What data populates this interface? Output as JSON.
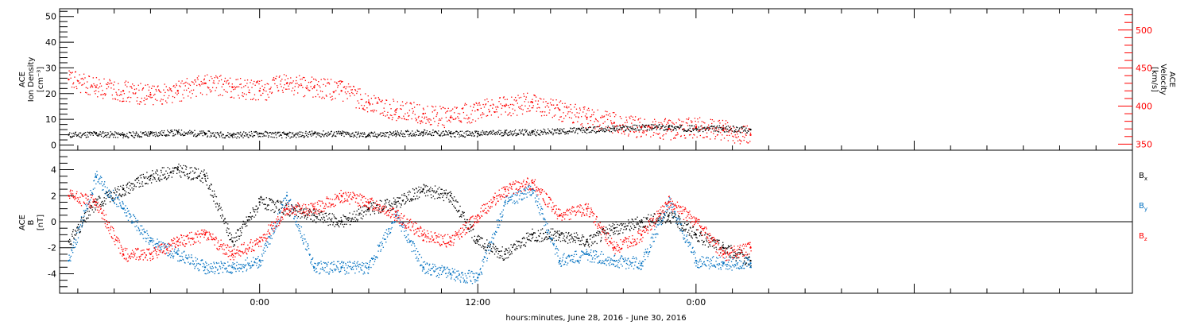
{
  "chart_data": [
    {
      "type": "scatter",
      "title": "",
      "ylabel_left": [
        "ACE",
        "Ion Density",
        "[cm⁻³]"
      ],
      "ylabel_right": [
        "ACE",
        "Velocity",
        "[km/s]"
      ],
      "yticks_left": [
        0,
        10,
        20,
        30,
        40,
        50
      ],
      "ylim_left": [
        -2,
        53
      ],
      "yticks_right": [
        350,
        400,
        450,
        500
      ],
      "ylim_right": [
        342,
        528
      ],
      "grid": false,
      "series": [
        {
          "axis": "left",
          "color": "#000000",
          "x": [
            -10.5,
            -9.0,
            -7.5,
            -6.0,
            -4.5,
            -3.0,
            -1.5,
            0.0,
            1.5,
            3.0,
            4.5,
            6.0,
            7.5,
            9.0,
            10.5,
            12.0,
            13.5,
            15.0,
            16.5,
            18.0,
            19.5,
            21.0,
            22.5,
            24.0,
            25.5,
            27.0
          ],
          "y": [
            4,
            4.5,
            4,
            4.5,
            5,
            4.5,
            4,
            4.5,
            4,
            4.5,
            4.5,
            4,
            4.5,
            5,
            4.5,
            4.5,
            5,
            5,
            5.5,
            6,
            6.5,
            7,
            7,
            6.5,
            6.5,
            6
          ]
        },
        {
          "axis": "right",
          "color": "#ff0000",
          "x": [
            -10.5,
            -9.0,
            -7.5,
            -6.0,
            -4.5,
            -3.0,
            -1.5,
            0.0,
            1.5,
            3.0,
            4.5,
            6.0,
            7.5,
            9.0,
            10.5,
            12.0,
            13.5,
            15.0,
            16.5,
            18.0,
            19.5,
            21.0,
            22.5,
            24.0,
            25.5,
            27.0
          ],
          "y": [
            435,
            425,
            420,
            415,
            420,
            430,
            425,
            420,
            430,
            425,
            420,
            405,
            395,
            390,
            385,
            395,
            400,
            405,
            395,
            385,
            378,
            372,
            370,
            372,
            368,
            362
          ]
        }
      ]
    },
    {
      "type": "scatter",
      "ylabel": [
        "ACE",
        "B",
        "[nT]"
      ],
      "yticks": [
        -4,
        -2,
        0,
        2,
        4
      ],
      "ylim": [
        -5.5,
        5.5
      ],
      "x_start_hours": -11,
      "x_end_hours": 48,
      "xticks": [
        0,
        12,
        24
      ],
      "xticklabels": [
        "0:00",
        "12:00",
        "0:00"
      ],
      "xlabel": "hours:minutes, June 28, 2016 - June 30, 2016",
      "series": [
        {
          "name": "B",
          "subscript": "x",
          "color": "#000000",
          "x": [
            -10.5,
            -9.0,
            -7.5,
            -6.0,
            -4.5,
            -3.0,
            -1.5,
            0.0,
            1.5,
            3.0,
            4.5,
            6.0,
            7.5,
            9.0,
            10.5,
            12.0,
            13.5,
            15.0,
            16.5,
            18.0,
            19.5,
            21.0,
            22.5,
            24.0,
            25.5,
            27.0
          ],
          "y": [
            -1.5,
            1.5,
            2.5,
            3.5,
            4.0,
            3.5,
            -1.5,
            1.5,
            1.0,
            0.5,
            0,
            1.0,
            1.5,
            2.5,
            2.0,
            -1.5,
            -2.5,
            -1.0,
            -1.0,
            -1.5,
            -0.5,
            0,
            0.5,
            -1.0,
            -2.0,
            -3.0
          ]
        },
        {
          "name": "B",
          "subscript": "y",
          "color": "#0070c0",
          "x": [
            -10.5,
            -9.0,
            -7.5,
            -6.0,
            -4.5,
            -3.0,
            -1.5,
            0.0,
            1.5,
            3.0,
            4.5,
            6.0,
            7.5,
            9.0,
            10.5,
            12.0,
            13.5,
            15.0,
            16.5,
            18.0,
            19.5,
            21.0,
            22.5,
            24.0,
            25.5,
            27.0
          ],
          "y": [
            -3.0,
            3.5,
            1.0,
            -1.5,
            -2.5,
            -3.5,
            -3.5,
            -3.0,
            2.0,
            -3.5,
            -3.5,
            -3.5,
            0.5,
            -3.5,
            -4.0,
            -4.3,
            1.5,
            2.5,
            -3.0,
            -2.5,
            -3.0,
            -3.2,
            1.5,
            -3.0,
            -3.2,
            -3.2
          ]
        },
        {
          "name": "B",
          "subscript": "z",
          "color": "#ff0000",
          "x": [
            -10.5,
            -9.0,
            -7.5,
            -6.0,
            -4.5,
            -3.0,
            -1.5,
            0.0,
            1.5,
            3.0,
            4.5,
            6.0,
            7.5,
            9.0,
            10.5,
            12.0,
            13.5,
            15.0,
            16.5,
            18.0,
            19.5,
            21.0,
            22.5,
            24.0,
            25.5,
            27.0
          ],
          "y": [
            2.0,
            1.5,
            -2.5,
            -2.5,
            -1.5,
            -1.0,
            -2.5,
            -1.5,
            1.0,
            1.0,
            2.0,
            1.5,
            0.5,
            -1.0,
            -1.5,
            0.5,
            2.5,
            3.0,
            0.5,
            1.0,
            -2.0,
            -1.0,
            1.5,
            0,
            -2.5,
            -2.0
          ]
        }
      ]
    }
  ]
}
